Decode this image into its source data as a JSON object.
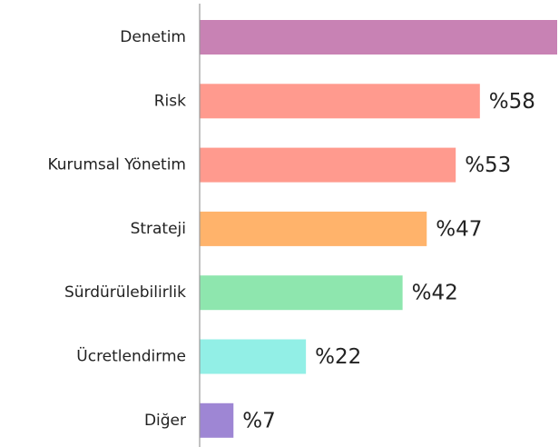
{
  "chart_data": {
    "type": "barh",
    "categories": [
      "Denetim",
      "Risk",
      "Kurumsal Yönetim",
      "Strateji",
      "Sürdürülebilirlik",
      "Ücretlendirme",
      "Diğer"
    ],
    "values": [
      74,
      58,
      53,
      47,
      42,
      22,
      7
    ],
    "value_labels": [
      null,
      "%58",
      "%53",
      "%47",
      "%42",
      "%22",
      "%7"
    ],
    "colors": [
      "#c882b4",
      "#ff9a8e",
      "#ff9a8e",
      "#ffb36b",
      "#8ee6ae",
      "#92efe6",
      "#9e86d4"
    ],
    "xlim": [
      0,
      74
    ]
  }
}
